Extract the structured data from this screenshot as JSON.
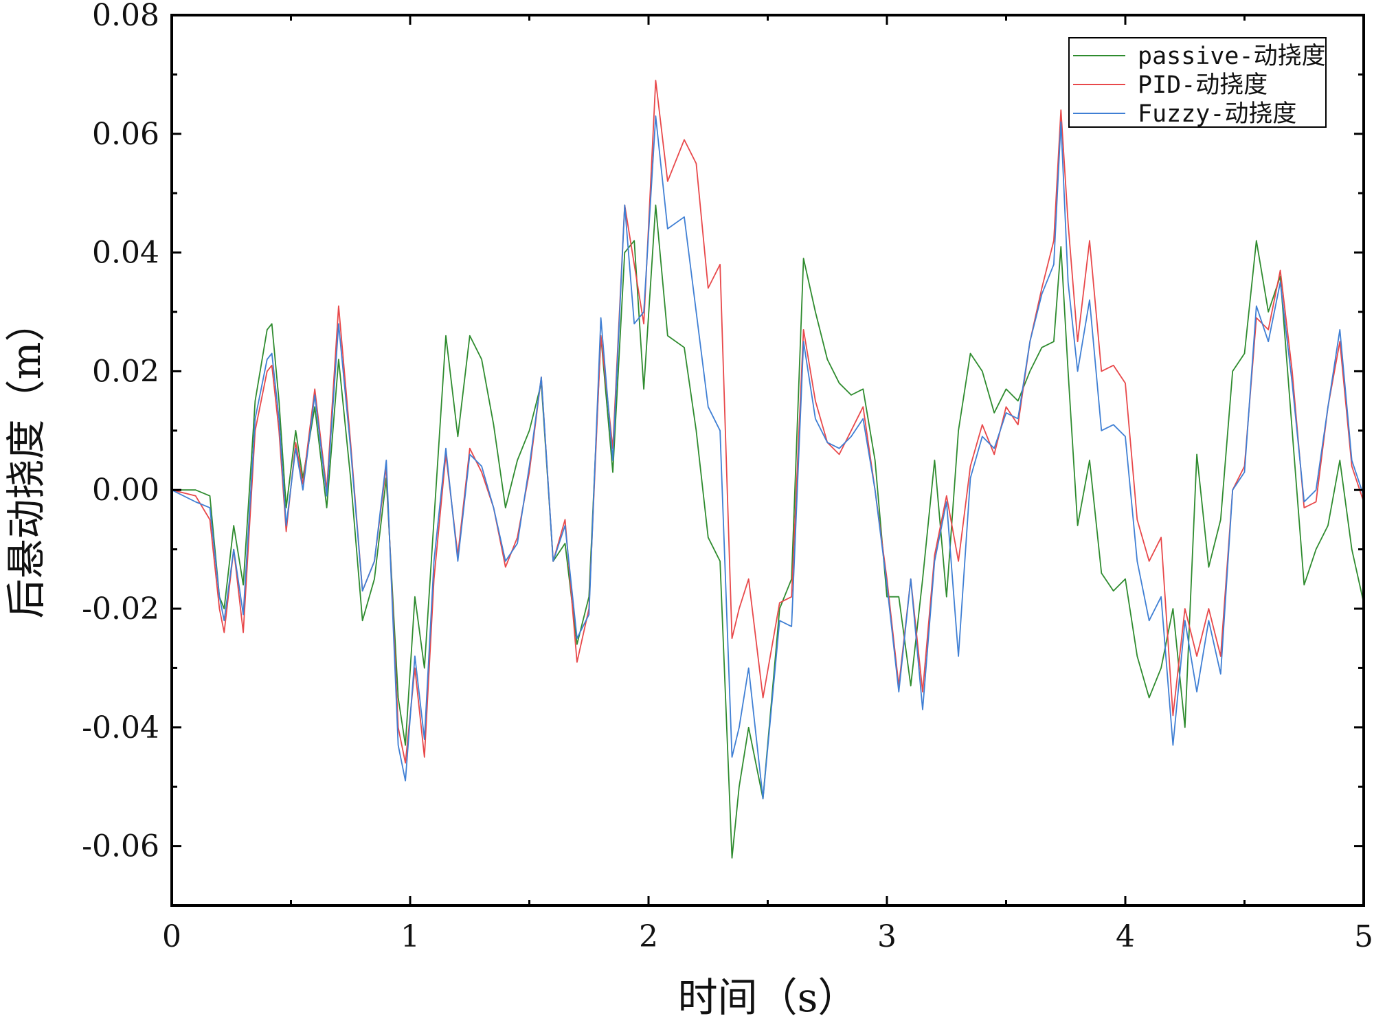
{
  "chart_data": {
    "type": "line",
    "title": "",
    "xlabel": "时间（s）",
    "ylabel": "后悬动挠度（m）",
    "xlim": [
      0,
      5
    ],
    "ylim": [
      -0.07,
      0.08
    ],
    "x_ticks": [
      0,
      1,
      2,
      3,
      4,
      5
    ],
    "x_tick_labels": [
      "0",
      "1",
      "2",
      "3",
      "4",
      "5"
    ],
    "y_ticks": [
      -0.06,
      -0.04,
      -0.02,
      0.0,
      0.02,
      0.04,
      0.06,
      0.08
    ],
    "y_tick_labels": [
      "-0.06",
      "-0.04",
      "-0.02",
      "0.00",
      "0.02",
      "0.04",
      "0.06",
      "0.08"
    ],
    "grid": false,
    "legend_position": "top-right",
    "series": [
      {
        "name": "passive-动挠度",
        "color": "#2e8b2e",
        "x": [
          0,
          0.1,
          0.16,
          0.2,
          0.22,
          0.26,
          0.3,
          0.35,
          0.4,
          0.42,
          0.45,
          0.48,
          0.52,
          0.55,
          0.6,
          0.65,
          0.7,
          0.75,
          0.8,
          0.85,
          0.9,
          0.95,
          0.98,
          1.02,
          1.06,
          1.1,
          1.15,
          1.2,
          1.25,
          1.3,
          1.35,
          1.4,
          1.45,
          1.5,
          1.55,
          1.6,
          1.65,
          1.7,
          1.75,
          1.8,
          1.85,
          1.9,
          1.94,
          1.98,
          2.03,
          2.08,
          2.15,
          2.2,
          2.25,
          2.3,
          2.35,
          2.38,
          2.42,
          2.48,
          2.55,
          2.6,
          2.65,
          2.7,
          2.75,
          2.8,
          2.85,
          2.9,
          2.95,
          3.0,
          3.05,
          3.1,
          3.15,
          3.2,
          3.25,
          3.3,
          3.35,
          3.4,
          3.45,
          3.5,
          3.55,
          3.6,
          3.65,
          3.7,
          3.73,
          3.76,
          3.8,
          3.85,
          3.9,
          3.95,
          4.0,
          4.05,
          4.1,
          4.15,
          4.2,
          4.25,
          4.3,
          4.35,
          4.4,
          4.45,
          4.5,
          4.55,
          4.6,
          4.65,
          4.7,
          4.75,
          4.8,
          4.85,
          4.9,
          4.95,
          5.0
        ],
        "values": [
          0.0,
          0.0,
          -0.001,
          -0.018,
          -0.02,
          -0.006,
          -0.016,
          0.015,
          0.027,
          0.028,
          0.015,
          -0.003,
          0.01,
          0.002,
          0.014,
          -0.003,
          0.022,
          0.002,
          -0.022,
          -0.015,
          0.002,
          -0.035,
          -0.043,
          -0.018,
          -0.03,
          -0.005,
          0.026,
          0.009,
          0.026,
          0.022,
          0.011,
          -0.003,
          0.005,
          0.01,
          0.018,
          -0.012,
          -0.009,
          -0.026,
          -0.018,
          0.026,
          0.003,
          0.04,
          0.042,
          0.017,
          0.048,
          0.026,
          0.024,
          0.01,
          -0.008,
          -0.012,
          -0.062,
          -0.05,
          -0.04,
          -0.052,
          -0.02,
          -0.015,
          0.039,
          0.03,
          0.022,
          0.018,
          0.016,
          0.017,
          0.005,
          -0.018,
          -0.018,
          -0.033,
          -0.015,
          0.005,
          -0.018,
          0.01,
          0.023,
          0.02,
          0.013,
          0.017,
          0.015,
          0.02,
          0.024,
          0.025,
          0.041,
          0.02,
          -0.006,
          0.005,
          -0.014,
          -0.017,
          -0.015,
          -0.028,
          -0.035,
          -0.03,
          -0.02,
          -0.04,
          0.006,
          -0.013,
          -0.005,
          0.02,
          0.023,
          0.042,
          0.03,
          0.036,
          0.01,
          -0.016,
          -0.01,
          -0.006,
          0.005,
          -0.01,
          -0.019
        ]
      },
      {
        "name": "PID-动挠度",
        "color": "#e8484a",
        "x": [
          0,
          0.1,
          0.16,
          0.2,
          0.22,
          0.26,
          0.3,
          0.35,
          0.4,
          0.42,
          0.45,
          0.48,
          0.52,
          0.55,
          0.6,
          0.65,
          0.7,
          0.75,
          0.8,
          0.85,
          0.9,
          0.95,
          0.98,
          1.02,
          1.06,
          1.1,
          1.15,
          1.2,
          1.25,
          1.3,
          1.35,
          1.4,
          1.45,
          1.5,
          1.55,
          1.6,
          1.65,
          1.7,
          1.75,
          1.8,
          1.85,
          1.9,
          1.94,
          1.98,
          2.03,
          2.08,
          2.15,
          2.2,
          2.25,
          2.3,
          2.35,
          2.38,
          2.42,
          2.48,
          2.55,
          2.6,
          2.65,
          2.7,
          2.75,
          2.8,
          2.85,
          2.9,
          2.95,
          3.0,
          3.05,
          3.1,
          3.15,
          3.2,
          3.25,
          3.3,
          3.35,
          3.4,
          3.45,
          3.5,
          3.55,
          3.6,
          3.65,
          3.7,
          3.73,
          3.76,
          3.8,
          3.85,
          3.9,
          3.95,
          4.0,
          4.05,
          4.1,
          4.15,
          4.2,
          4.25,
          4.3,
          4.35,
          4.4,
          4.45,
          4.5,
          4.55,
          4.6,
          4.65,
          4.7,
          4.75,
          4.8,
          4.85,
          4.9,
          4.95,
          5.0
        ],
        "values": [
          0.0,
          -0.001,
          -0.005,
          -0.02,
          -0.024,
          -0.01,
          -0.024,
          0.01,
          0.02,
          0.021,
          0.01,
          -0.007,
          0.008,
          0.001,
          0.017,
          0.0,
          0.031,
          0.008,
          -0.017,
          -0.012,
          0.004,
          -0.04,
          -0.046,
          -0.03,
          -0.045,
          -0.015,
          0.006,
          -0.011,
          0.007,
          0.003,
          -0.003,
          -0.013,
          -0.008,
          0.003,
          0.019,
          -0.012,
          -0.005,
          -0.029,
          -0.02,
          0.026,
          0.007,
          0.048,
          0.038,
          0.028,
          0.069,
          0.052,
          0.059,
          0.055,
          0.034,
          0.038,
          -0.025,
          -0.02,
          -0.015,
          -0.035,
          -0.019,
          -0.018,
          0.027,
          0.015,
          0.008,
          0.006,
          0.01,
          0.014,
          0.0,
          -0.015,
          -0.033,
          -0.015,
          -0.034,
          -0.011,
          -0.001,
          -0.012,
          0.004,
          0.011,
          0.006,
          0.014,
          0.011,
          0.025,
          0.034,
          0.042,
          0.064,
          0.045,
          0.025,
          0.042,
          0.02,
          0.021,
          0.018,
          -0.005,
          -0.012,
          -0.008,
          -0.038,
          -0.02,
          -0.028,
          -0.02,
          -0.028,
          0.0,
          0.004,
          0.029,
          0.027,
          0.037,
          0.02,
          -0.003,
          -0.002,
          0.014,
          0.025,
          0.004,
          -0.002
        ]
      },
      {
        "name": "Fuzzy-动挠度",
        "color": "#3f7fd4",
        "x": [
          0,
          0.1,
          0.16,
          0.2,
          0.22,
          0.26,
          0.3,
          0.35,
          0.4,
          0.42,
          0.45,
          0.48,
          0.52,
          0.55,
          0.6,
          0.65,
          0.7,
          0.75,
          0.8,
          0.85,
          0.9,
          0.95,
          0.98,
          1.02,
          1.06,
          1.1,
          1.15,
          1.2,
          1.25,
          1.3,
          1.35,
          1.4,
          1.45,
          1.5,
          1.55,
          1.6,
          1.65,
          1.7,
          1.75,
          1.8,
          1.85,
          1.9,
          1.94,
          1.98,
          2.03,
          2.08,
          2.15,
          2.2,
          2.25,
          2.3,
          2.35,
          2.38,
          2.42,
          2.48,
          2.55,
          2.6,
          2.65,
          2.7,
          2.75,
          2.8,
          2.85,
          2.9,
          2.95,
          3.0,
          3.05,
          3.1,
          3.15,
          3.2,
          3.25,
          3.3,
          3.35,
          3.4,
          3.45,
          3.5,
          3.55,
          3.6,
          3.65,
          3.7,
          3.73,
          3.76,
          3.8,
          3.85,
          3.9,
          3.95,
          4.0,
          4.05,
          4.1,
          4.15,
          4.2,
          4.25,
          4.3,
          4.35,
          4.4,
          4.45,
          4.5,
          4.55,
          4.6,
          4.65,
          4.7,
          4.75,
          4.8,
          4.85,
          4.9,
          4.95,
          5.0
        ],
        "values": [
          0.0,
          -0.002,
          -0.003,
          -0.018,
          -0.022,
          -0.01,
          -0.021,
          0.012,
          0.022,
          0.023,
          0.012,
          -0.006,
          0.007,
          0.0,
          0.016,
          -0.001,
          0.028,
          0.007,
          -0.017,
          -0.012,
          0.005,
          -0.043,
          -0.049,
          -0.028,
          -0.042,
          -0.012,
          0.007,
          -0.012,
          0.006,
          0.004,
          -0.003,
          -0.012,
          -0.009,
          0.004,
          0.019,
          -0.012,
          -0.006,
          -0.025,
          -0.021,
          0.029,
          0.005,
          0.048,
          0.028,
          0.03,
          0.063,
          0.044,
          0.046,
          0.03,
          0.014,
          0.01,
          -0.045,
          -0.04,
          -0.03,
          -0.052,
          -0.022,
          -0.023,
          0.025,
          0.012,
          0.008,
          0.007,
          0.009,
          0.012,
          0.0,
          -0.016,
          -0.034,
          -0.015,
          -0.037,
          -0.012,
          -0.002,
          -0.028,
          0.002,
          0.009,
          0.007,
          0.013,
          0.012,
          0.025,
          0.033,
          0.038,
          0.062,
          0.035,
          0.02,
          0.032,
          0.01,
          0.011,
          0.009,
          -0.012,
          -0.022,
          -0.018,
          -0.043,
          -0.022,
          -0.034,
          -0.022,
          -0.031,
          0.0,
          0.003,
          0.031,
          0.025,
          0.035,
          0.018,
          -0.002,
          0.0,
          0.014,
          0.027,
          0.005,
          -0.001
        ]
      }
    ]
  }
}
